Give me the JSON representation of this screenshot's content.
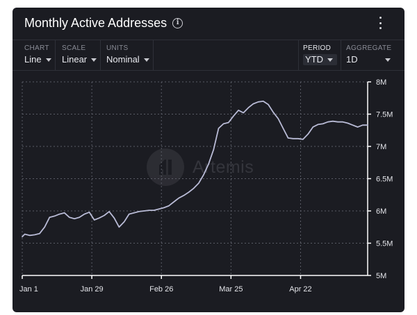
{
  "header": {
    "title": "Monthly Active Addresses",
    "info_icon": "info-circle-icon",
    "menu_icon": "kebab-menu-icon"
  },
  "controls": {
    "chart": {
      "label": "CHART",
      "value": "Line"
    },
    "scale": {
      "label": "SCALE",
      "value": "Linear"
    },
    "units": {
      "label": "UNITS",
      "value": "Nominal"
    },
    "period": {
      "label": "PERIOD",
      "value": "YTD"
    },
    "aggregate": {
      "label": "AGGREGATE",
      "value": "1D"
    }
  },
  "watermark": {
    "text": "Artemis"
  },
  "colors": {
    "background": "#1b1c22",
    "line": "#b9bbd6",
    "grid": "#5a5c66",
    "axis": "#ffffff"
  },
  "chart_data": {
    "type": "line",
    "title": "",
    "xlabel": "",
    "ylabel": "",
    "x_tick_labels": [
      "Jan 1",
      "Jan 29",
      "Feb 26",
      "Mar 25",
      "Apr 22"
    ],
    "y_tick_labels": [
      "5M",
      "5.5M",
      "6M",
      "6.5M",
      "7M",
      "7.5M",
      "8M"
    ],
    "ylim": [
      5000000,
      8000000
    ],
    "xlim": [
      "2024-01-01",
      "2024-05-19"
    ],
    "grid": true,
    "y_axis_position": "right",
    "series": [
      {
        "x": [
          "2024-01-01",
          "2024-01-02",
          "2024-01-04",
          "2024-01-06",
          "2024-01-08",
          "2024-01-10",
          "2024-01-12",
          "2024-01-14",
          "2024-01-16",
          "2024-01-18",
          "2024-01-20",
          "2024-01-22",
          "2024-01-24",
          "2024-01-26",
          "2024-01-28",
          "2024-01-30",
          "2024-02-01",
          "2024-02-03",
          "2024-02-05",
          "2024-02-07",
          "2024-02-09",
          "2024-02-11",
          "2024-02-13",
          "2024-02-15",
          "2024-02-17",
          "2024-02-19",
          "2024-02-21",
          "2024-02-23",
          "2024-02-25",
          "2024-02-27",
          "2024-02-29",
          "2024-03-02",
          "2024-03-04",
          "2024-03-06",
          "2024-03-08",
          "2024-03-10",
          "2024-03-12",
          "2024-03-14",
          "2024-03-16",
          "2024-03-18",
          "2024-03-20",
          "2024-03-22",
          "2024-03-24",
          "2024-03-26",
          "2024-03-28",
          "2024-03-30",
          "2024-04-01",
          "2024-04-03",
          "2024-04-05",
          "2024-04-07",
          "2024-04-09",
          "2024-04-11",
          "2024-04-13",
          "2024-04-15",
          "2024-04-17",
          "2024-04-19",
          "2024-04-21",
          "2024-04-23",
          "2024-04-25",
          "2024-04-27",
          "2024-04-29",
          "2024-05-01",
          "2024-05-03",
          "2024-05-05",
          "2024-05-07",
          "2024-05-09",
          "2024-05-11",
          "2024-05-13",
          "2024-05-15",
          "2024-05-17",
          "2024-05-19"
        ],
        "values": [
          5600000,
          5640000,
          5620000,
          5630000,
          5650000,
          5750000,
          5900000,
          5920000,
          5950000,
          5970000,
          5900000,
          5880000,
          5900000,
          5950000,
          5980000,
          5860000,
          5890000,
          5930000,
          5990000,
          5890000,
          5750000,
          5830000,
          5950000,
          5970000,
          5990000,
          6000000,
          6010000,
          6010000,
          6030000,
          6050000,
          6080000,
          6140000,
          6200000,
          6240000,
          6290000,
          6350000,
          6430000,
          6560000,
          6730000,
          6950000,
          7280000,
          7350000,
          7370000,
          7470000,
          7560000,
          7520000,
          7600000,
          7660000,
          7690000,
          7700000,
          7650000,
          7530000,
          7430000,
          7280000,
          7130000,
          7120000,
          7120000,
          7110000,
          7190000,
          7300000,
          7340000,
          7350000,
          7380000,
          7390000,
          7380000,
          7380000,
          7360000,
          7330000,
          7300000,
          7330000,
          7330000
        ]
      }
    ]
  }
}
